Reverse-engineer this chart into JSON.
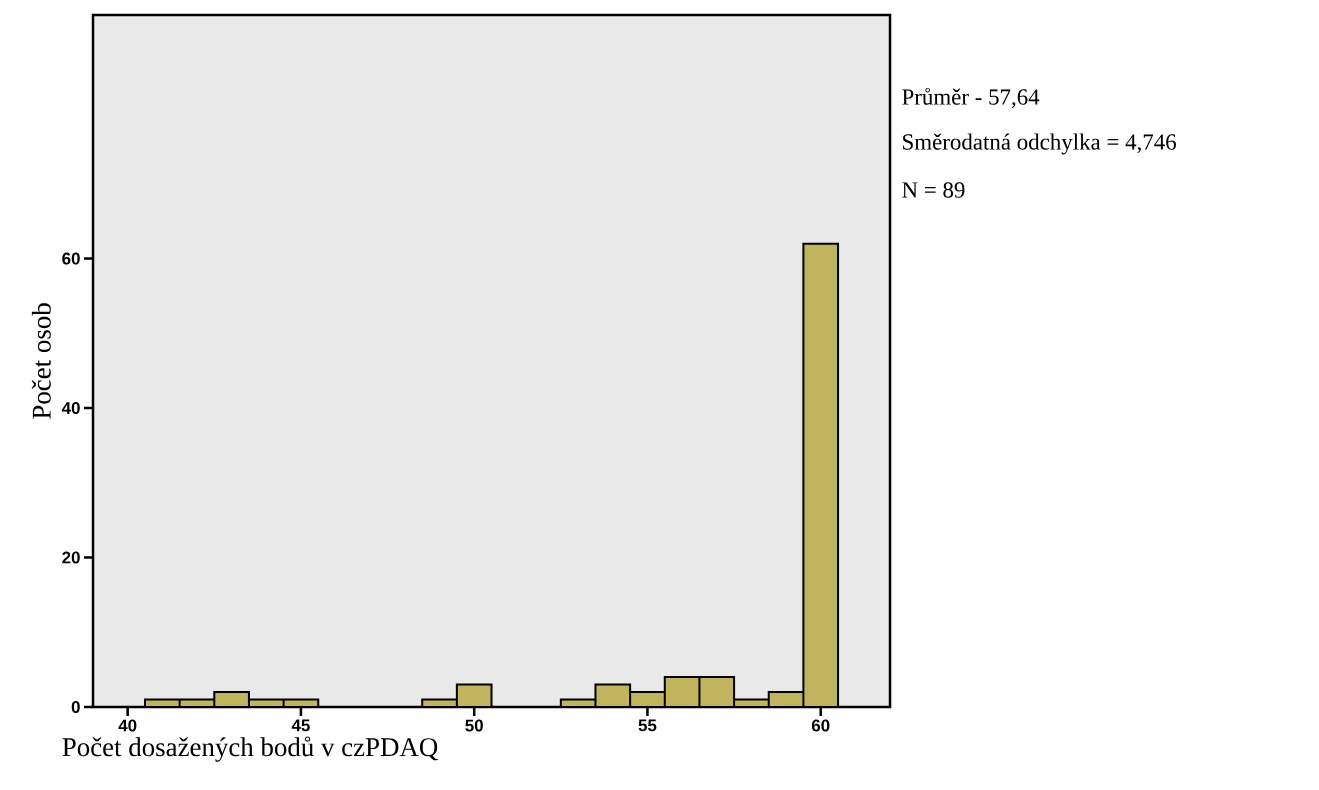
{
  "chart_data": {
    "type": "histogram",
    "xlabel": "Počet dosažených bodů v czPDAQ",
    "ylabel": "Počet osob",
    "bins": [
      40.5,
      41.5,
      42.5,
      43.5,
      44.5,
      45.5,
      46.5,
      47.5,
      48.5,
      49.5,
      50.5,
      51.5,
      52.5,
      53.5,
      54.5,
      55.5,
      56.5,
      57.5,
      58.5,
      59.5,
      60.5
    ],
    "values": [
      1,
      1,
      2,
      1,
      1,
      0,
      0,
      0,
      1,
      3,
      0,
      0,
      1,
      3,
      2,
      4,
      4,
      1,
      2,
      62
    ],
    "color": "#c0b55e",
    "xlim": [
      39,
      62
    ],
    "ylim": [
      0,
      92.6
    ],
    "xticks": [
      40,
      45,
      50,
      55,
      60
    ],
    "yticks": [
      0,
      20,
      40,
      60
    ],
    "grid": false,
    "annotations": [
      "Průměr - 57,64",
      "Směrodatná odchylka = 4,746",
      "N = 89"
    ]
  }
}
